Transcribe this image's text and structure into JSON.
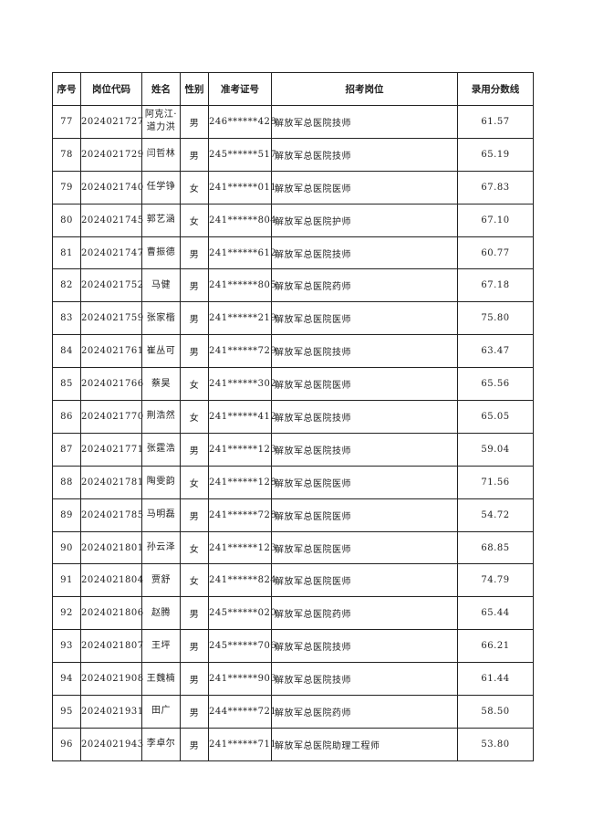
{
  "table": {
    "headers": [
      "序号",
      "岗位代码",
      "姓名",
      "性别",
      "准考证号",
      "招考岗位",
      "录用分数线"
    ],
    "rows": [
      [
        "77",
        "2024021727",
        "阿克江·道力洪",
        "男",
        "246******428",
        "解放军总医院技师",
        "61.57"
      ],
      [
        "78",
        "2024021729",
        "闫哲林",
        "男",
        "245******517",
        "解放军总医院技师",
        "65.19"
      ],
      [
        "79",
        "2024021740",
        "任学铮",
        "女",
        "241******011",
        "解放军总医院医师",
        "67.83"
      ],
      [
        "80",
        "2024021745",
        "郭艺涵",
        "女",
        "241******804",
        "解放军总医院护师",
        "67.10"
      ],
      [
        "81",
        "2024021747",
        "曹振德",
        "男",
        "241******612",
        "解放军总医院技师",
        "60.77"
      ],
      [
        "82",
        "2024021752",
        "马健",
        "男",
        "241******805",
        "解放军总医院药师",
        "67.18"
      ],
      [
        "83",
        "2024021759",
        "张家楷",
        "男",
        "241******219",
        "解放军总医院医师",
        "75.80"
      ],
      [
        "84",
        "2024021761",
        "崔丛可",
        "男",
        "241******729",
        "解放军总医院技师",
        "63.47"
      ],
      [
        "85",
        "2024021766",
        "蔡昊",
        "女",
        "241******302",
        "解放军总医院医师",
        "65.56"
      ],
      [
        "86",
        "2024021770",
        "荆浩然",
        "女",
        "241******412",
        "解放军总医院技师",
        "65.05"
      ],
      [
        "87",
        "2024021771",
        "张霆浩",
        "男",
        "241******123",
        "解放军总医院技师",
        "59.04"
      ],
      [
        "88",
        "2024021781",
        "陶雯韵",
        "女",
        "241******128",
        "解放军总医院医师",
        "71.56"
      ],
      [
        "89",
        "2024021785",
        "马明磊",
        "男",
        "241******728",
        "解放军总医院医师",
        "54.72"
      ],
      [
        "90",
        "2024021801",
        "孙云泽",
        "女",
        "241******123",
        "解放军总医院医师",
        "68.85"
      ],
      [
        "91",
        "2024021804",
        "贾舒",
        "女",
        "241******824",
        "解放军总医院医师",
        "74.79"
      ],
      [
        "92",
        "2024021806",
        "赵腾",
        "男",
        "245******020",
        "解放军总医院药师",
        "65.44"
      ],
      [
        "93",
        "2024021807",
        "王坪",
        "男",
        "245******706",
        "解放军总医院技师",
        "66.21"
      ],
      [
        "94",
        "2024021908",
        "王魏楠",
        "男",
        "241******903",
        "解放军总医院技师",
        "61.44"
      ],
      [
        "95",
        "2024021931",
        "田广",
        "男",
        "244******721",
        "解放军总医院药师",
        "58.50"
      ],
      [
        "96",
        "2024021943",
        "李卓尔",
        "男",
        "241******711",
        "解放军总医院助理工程师",
        "53.80"
      ]
    ]
  }
}
